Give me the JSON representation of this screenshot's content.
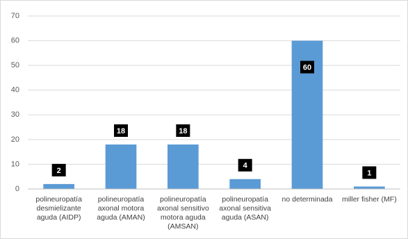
{
  "chart_data": {
    "type": "bar",
    "categories": [
      "polineuropatía desmielizante aguda (AIDP)",
      "polineuropatía axonal motora aguda (AMAN)",
      "polineuropatía axonal sensitivo motora aguda (AMSAN)",
      "polineuropatía axonal sensitiva aguda (ASAN)",
      "no determinada",
      "miller fisher (MF)"
    ],
    "values": [
      2,
      18,
      18,
      4,
      60,
      1
    ],
    "color": "#5b9bd5",
    "ylim": [
      0,
      70
    ],
    "yticks": [
      0,
      10,
      20,
      30,
      40,
      50,
      60,
      70
    ],
    "grid": true
  }
}
